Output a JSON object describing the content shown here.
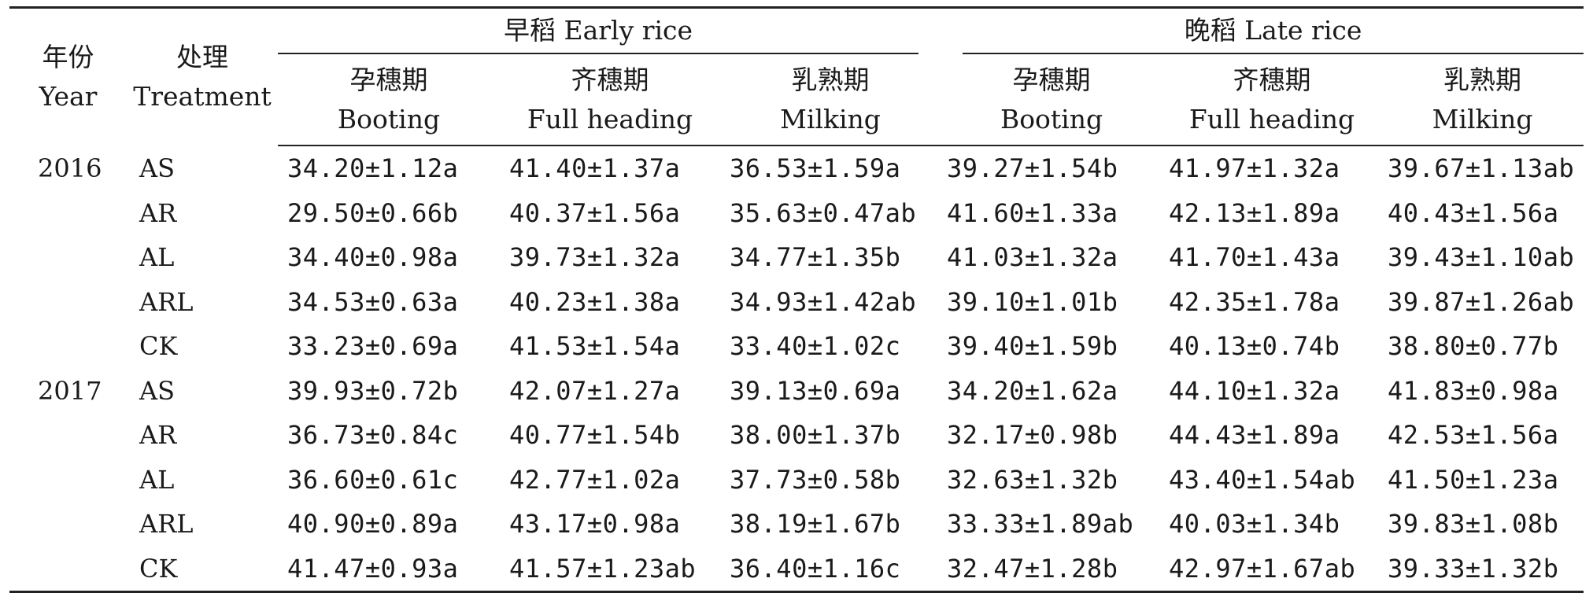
{
  "header": {
    "year": {
      "zh": "年份",
      "en": "Year"
    },
    "treatment": {
      "zh": "处理",
      "en": "Treatment"
    },
    "early": "早稻 Early rice",
    "late": "晚稻 Late rice",
    "stages": [
      {
        "zh": "孕穗期",
        "en": "Booting"
      },
      {
        "zh": "齐穗期",
        "en": "Full heading"
      },
      {
        "zh": "乳熟期",
        "en": "Milking"
      },
      {
        "zh": "孕穗期",
        "en": "Booting"
      },
      {
        "zh": "齐穗期",
        "en": "Full heading"
      },
      {
        "zh": "乳熟期",
        "en": "Milking"
      }
    ]
  },
  "rows": [
    {
      "year": "2016",
      "trt": "AS",
      "v": [
        "34.20±1.12a",
        "41.40±1.37a",
        "36.53±1.59a",
        "39.27±1.54b",
        "41.97±1.32a",
        "39.67±1.13ab"
      ]
    },
    {
      "year": "",
      "trt": "AR",
      "v": [
        "29.50±0.66b",
        "40.37±1.56a",
        "35.63±0.47ab",
        "41.60±1.33a",
        "42.13±1.89a",
        "40.43±1.56a"
      ]
    },
    {
      "year": "",
      "trt": "AL",
      "v": [
        "34.40±0.98a",
        "39.73±1.32a",
        "34.77±1.35b",
        "41.03±1.32a",
        "41.70±1.43a",
        "39.43±1.10ab"
      ]
    },
    {
      "year": "",
      "trt": "ARL",
      "v": [
        "34.53±0.63a",
        "40.23±1.38a",
        "34.93±1.42ab",
        "39.10±1.01b",
        "42.35±1.78a",
        "39.87±1.26ab"
      ]
    },
    {
      "year": "",
      "trt": "CK",
      "v": [
        "33.23±0.69a",
        "41.53±1.54a",
        "33.40±1.02c",
        "39.40±1.59b",
        "40.13±0.74b",
        "38.80±0.77b"
      ]
    },
    {
      "year": "2017",
      "trt": "AS",
      "v": [
        "39.93±0.72b",
        "42.07±1.27a",
        "39.13±0.69a",
        "34.20±1.62a",
        "44.10±1.32a",
        "41.83±0.98a"
      ]
    },
    {
      "year": "",
      "trt": "AR",
      "v": [
        "36.73±0.84c",
        "40.77±1.54b",
        "38.00±1.37b",
        "32.17±0.98b",
        "44.43±1.89a",
        "42.53±1.56a"
      ]
    },
    {
      "year": "",
      "trt": "AL",
      "v": [
        "36.60±0.61c",
        "42.77±1.02a",
        "37.73±0.58b",
        "32.63±1.32b",
        "43.40±1.54ab",
        "41.50±1.23a"
      ]
    },
    {
      "year": "",
      "trt": "ARL",
      "v": [
        "40.90±0.89a",
        "43.17±0.98a",
        "38.19±1.67b",
        "33.33±1.89ab",
        "40.03±1.34b",
        "39.83±1.08b"
      ]
    },
    {
      "year": "",
      "trt": "CK",
      "v": [
        "41.47±0.93a",
        "41.57±1.23ab",
        "36.40±1.16c",
        "32.47±1.28b",
        "42.97±1.67ab",
        "39.33±1.32b"
      ]
    }
  ]
}
